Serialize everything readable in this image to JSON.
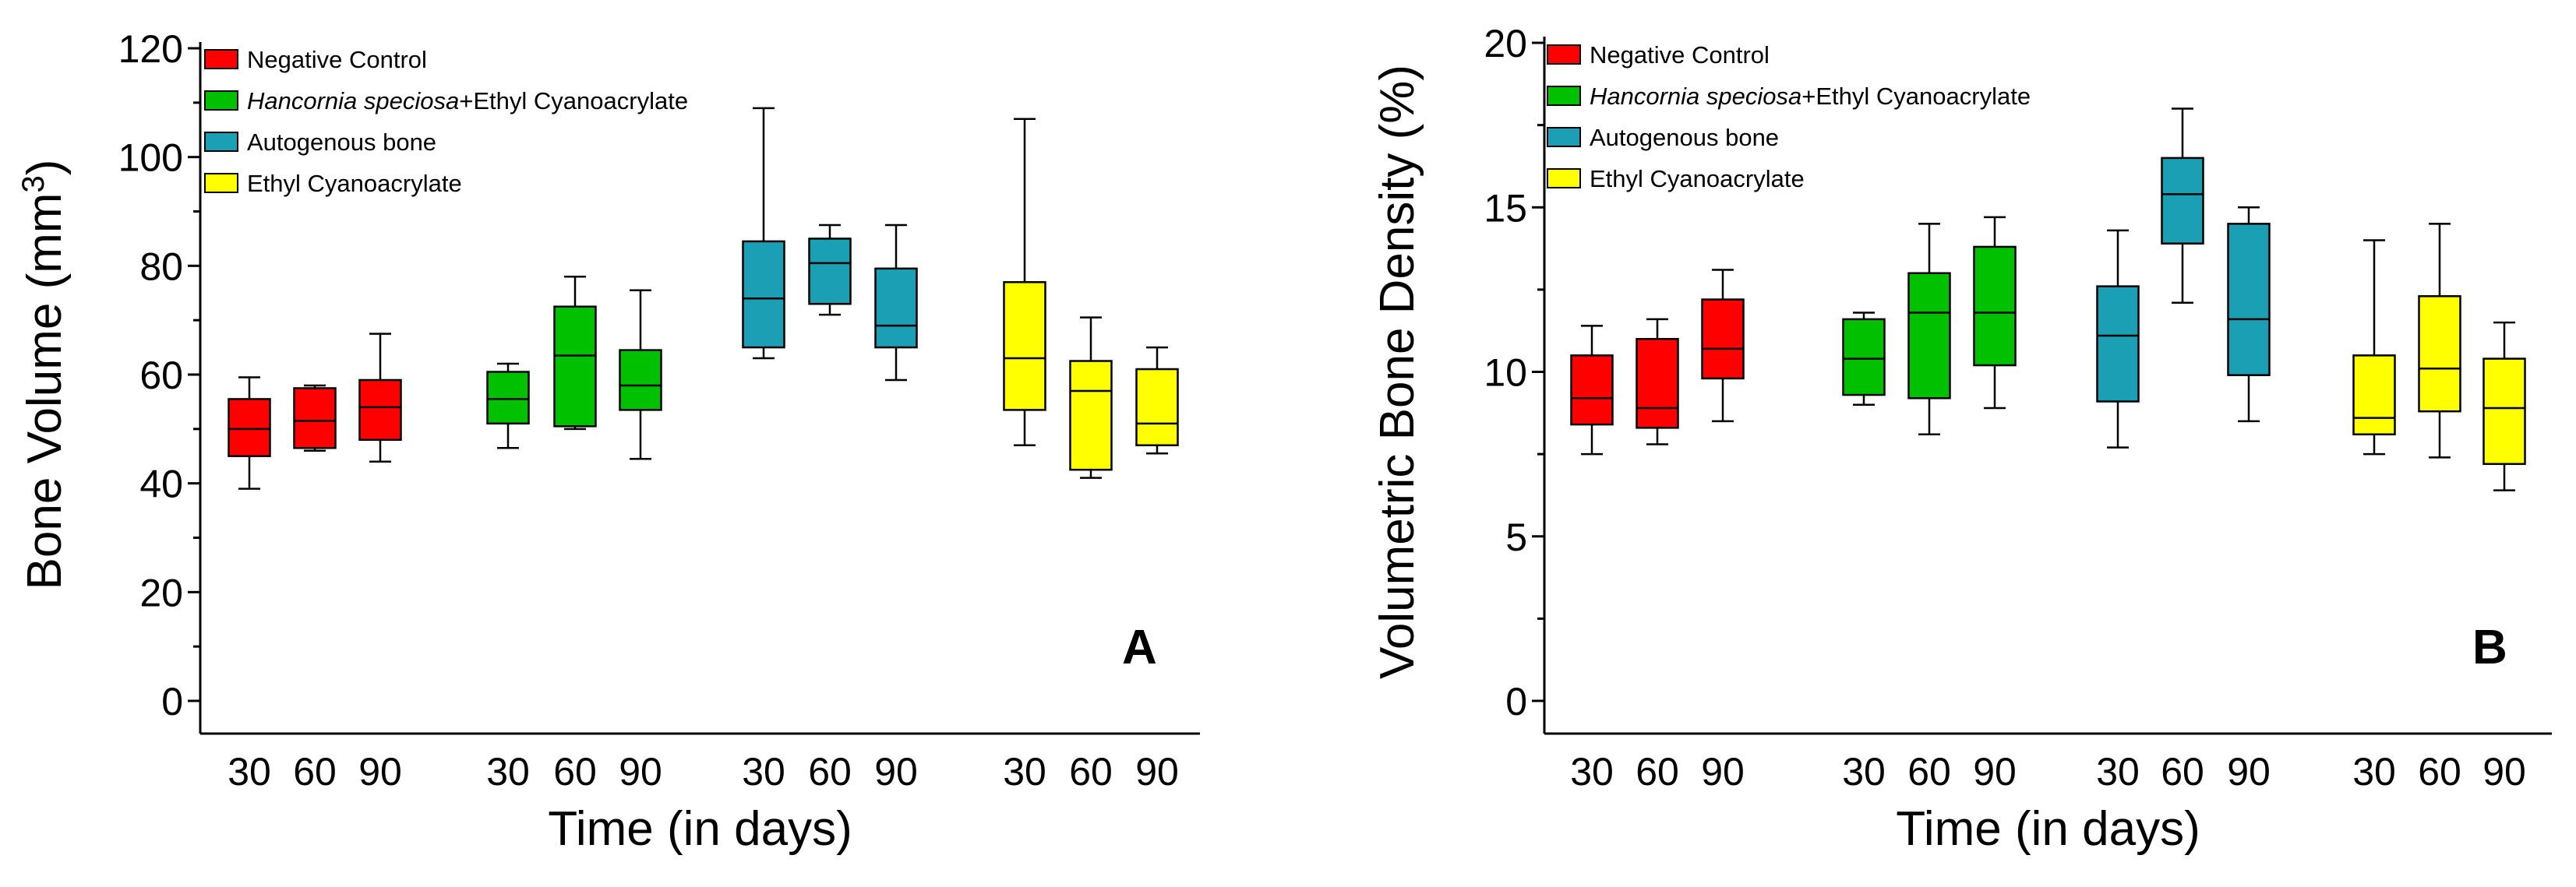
{
  "chart_data": [
    {
      "type": "box",
      "panel": "A",
      "title": "",
      "ylabel": "Bone Volume (mm",
      "ylabel_sup": "3",
      "ylabel_end": ")",
      "xlabel": "Time (in days)",
      "ylim": [
        0,
        120
      ],
      "yticks": [
        0,
        20,
        40,
        60,
        80,
        100,
        120
      ],
      "groups": [
        {
          "name": "Negative Control",
          "color": "#ff0000",
          "boxes": [
            {
              "day": "30",
              "min": 39,
              "q1": 45,
              "median": 50,
              "q3": 55.5,
              "max": 59.5
            },
            {
              "day": "60",
              "min": 46,
              "q1": 46.5,
              "median": 51.5,
              "q3": 57.5,
              "max": 58
            },
            {
              "day": "90",
              "min": 44,
              "q1": 48,
              "median": 54,
              "q3": 59,
              "max": 67.5
            }
          ]
        },
        {
          "name": "Hancornia speciosa+Ethyl Cyanoacrylate",
          "color": "#00c000",
          "boxes": [
            {
              "day": "30",
              "min": 46.5,
              "q1": 51,
              "median": 55.5,
              "q3": 60.5,
              "max": 62
            },
            {
              "day": "60",
              "min": 50,
              "q1": 50.5,
              "median": 63.5,
              "q3": 72.5,
              "max": 78
            },
            {
              "day": "90",
              "min": 44.5,
              "q1": 53.5,
              "median": 58,
              "q3": 64.5,
              "max": 75.5
            }
          ]
        },
        {
          "name": "Autogenous bone",
          "color": "#1a9fb4",
          "boxes": [
            {
              "day": "30",
              "min": 63,
              "q1": 65,
              "median": 74,
              "q3": 84.5,
              "max": 109
            },
            {
              "day": "60",
              "min": 71,
              "q1": 73,
              "median": 80.5,
              "q3": 85,
              "max": 87.5
            },
            {
              "day": "90",
              "min": 59,
              "q1": 65,
              "median": 69,
              "q3": 79.5,
              "max": 87.5
            }
          ]
        },
        {
          "name": "Ethyl Cyanoacrylate",
          "color": "#ffff00",
          "boxes": [
            {
              "day": "30",
              "min": 47,
              "q1": 53.5,
              "median": 63,
              "q3": 77,
              "max": 107
            },
            {
              "day": "60",
              "min": 41,
              "q1": 42.5,
              "median": 57,
              "q3": 62.5,
              "max": 70.5
            },
            {
              "day": "90",
              "min": 45.5,
              "q1": 47,
              "median": 51,
              "q3": 61,
              "max": 65
            }
          ]
        }
      ]
    },
    {
      "type": "box",
      "panel": "B",
      "title": "",
      "ylabel": "Volumetric Bone Density (%)",
      "xlabel": "Time (in days)",
      "ylim": [
        0,
        20
      ],
      "yticks": [
        0,
        5,
        10,
        15,
        20
      ],
      "groups": [
        {
          "name": "Negative Control",
          "color": "#ff0000",
          "boxes": [
            {
              "day": "30",
              "min": 7.5,
              "q1": 8.4,
              "median": 9.2,
              "q3": 10.5,
              "max": 11.4
            },
            {
              "day": "60",
              "min": 7.8,
              "q1": 8.3,
              "median": 8.9,
              "q3": 11,
              "max": 11.6
            },
            {
              "day": "90",
              "min": 8.5,
              "q1": 9.8,
              "median": 10.7,
              "q3": 12.2,
              "max": 13.1
            }
          ]
        },
        {
          "name": "Hancornia speciosa+Ethyl Cyanoacrylate",
          "color": "#00c000",
          "boxes": [
            {
              "day": "30",
              "min": 9,
              "q1": 9.3,
              "median": 10.4,
              "q3": 11.6,
              "max": 11.8
            },
            {
              "day": "60",
              "min": 8.1,
              "q1": 9.2,
              "median": 11.8,
              "q3": 13,
              "max": 14.5
            },
            {
              "day": "90",
              "min": 8.9,
              "q1": 10.2,
              "median": 11.8,
              "q3": 13.8,
              "max": 14.7
            }
          ]
        },
        {
          "name": "Autogenous bone",
          "color": "#1a9fb4",
          "boxes": [
            {
              "day": "30",
              "min": 7.7,
              "q1": 9.1,
              "median": 11.1,
              "q3": 12.6,
              "max": 14.3
            },
            {
              "day": "60",
              "min": 12.1,
              "q1": 13.9,
              "median": 15.4,
              "q3": 16.5,
              "max": 18
            },
            {
              "day": "90",
              "min": 8.5,
              "q1": 9.9,
              "median": 11.6,
              "q3": 14.5,
              "max": 15
            }
          ]
        },
        {
          "name": "Ethyl Cyanoacrylate",
          "color": "#ffff00",
          "boxes": [
            {
              "day": "30",
              "min": 7.5,
              "q1": 8.1,
              "median": 8.6,
              "q3": 10.5,
              "max": 14
            },
            {
              "day": "60",
              "min": 7.4,
              "q1": 8.8,
              "median": 10.1,
              "q3": 12.3,
              "max": 14.5
            },
            {
              "day": "90",
              "min": 6.4,
              "q1": 7.2,
              "median": 8.9,
              "q3": 10.4,
              "max": 11.5
            }
          ]
        }
      ]
    }
  ],
  "legend": [
    {
      "italic": "",
      "text": "Negative Control",
      "color": "#ff0000"
    },
    {
      "italic": "Hancornia speciosa",
      "text": "+Ethyl Cyanoacrylate",
      "color": "#00c000"
    },
    {
      "italic": "",
      "text": "Autogenous bone",
      "color": "#1a9fb4"
    },
    {
      "italic": "",
      "text": "Ethyl Cyanoacrylate",
      "color": "#ffff00"
    }
  ]
}
